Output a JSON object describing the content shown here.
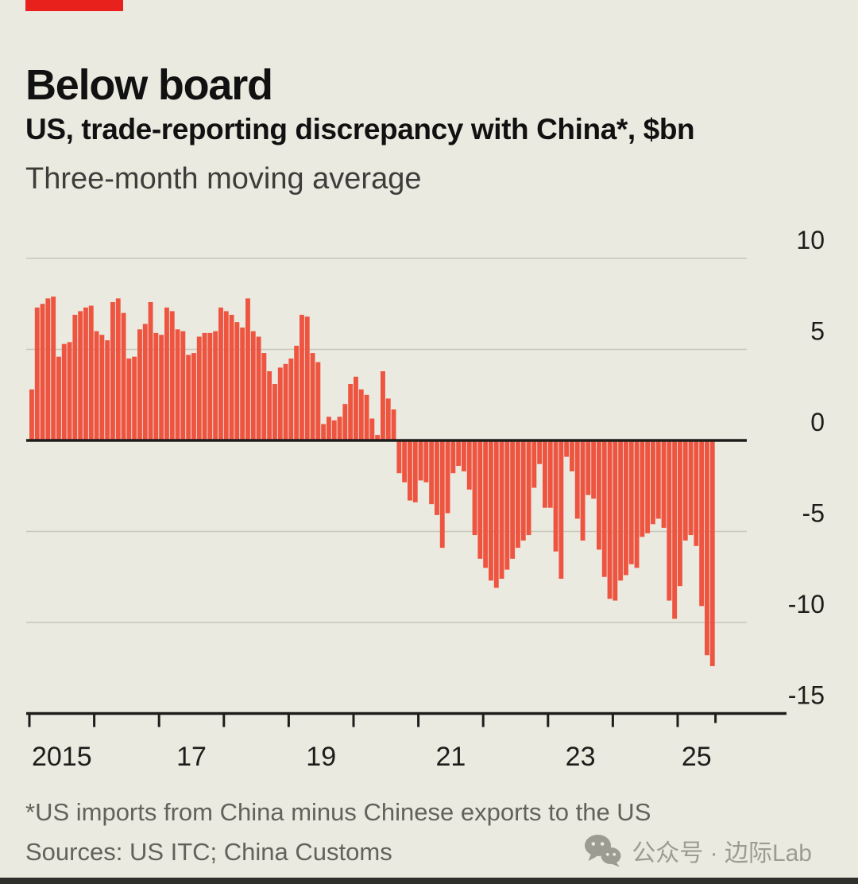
{
  "header": {
    "title": "Below board",
    "subtitle": "US, trade-reporting discrepancy with China*, $bn",
    "description": "Three-month moving average"
  },
  "chart_data": {
    "type": "bar",
    "title": "Below board",
    "subtitle": "US, trade-reporting discrepancy with China*, $bn",
    "note": "Three-month moving average",
    "unit": "$bn",
    "ylim": [
      -15,
      10
    ],
    "yticks": [
      10,
      5,
      0,
      -5,
      -10,
      -15
    ],
    "grid": true,
    "legend": false,
    "x_start": "2015-01",
    "x_end": "2025-07",
    "x_tick_years": [
      2015,
      2016,
      2017,
      2018,
      2019,
      2020,
      2021,
      2022,
      2023,
      2024,
      2025
    ],
    "x_tick_labels": [
      {
        "year": 2015,
        "label": "2015"
      },
      {
        "year": 2017,
        "label": "17"
      },
      {
        "year": 2019,
        "label": "19"
      },
      {
        "year": 2021,
        "label": "21"
      },
      {
        "year": 2023,
        "label": "23"
      },
      {
        "year": 2025,
        "label": "25"
      }
    ],
    "series": [
      {
        "name": "US trade-reporting discrepancy with China, three-month moving average",
        "monthly_values": [
          2.8,
          7.3,
          7.5,
          7.8,
          7.9,
          4.6,
          5.3,
          5.4,
          6.9,
          7.1,
          7.3,
          7.4,
          6.0,
          5.8,
          5.5,
          7.6,
          7.8,
          7.0,
          4.5,
          4.6,
          6.1,
          6.4,
          7.6,
          5.9,
          5.8,
          7.3,
          7.1,
          6.1,
          6.0,
          4.7,
          4.8,
          5.7,
          5.9,
          5.9,
          6.0,
          7.3,
          7.1,
          6.9,
          6.5,
          6.2,
          7.8,
          6.0,
          5.7,
          4.8,
          3.8,
          3.1,
          4.0,
          4.2,
          4.5,
          5.2,
          6.9,
          6.8,
          4.8,
          4.3,
          0.9,
          1.3,
          1.1,
          1.3,
          2.0,
          3.1,
          3.5,
          2.8,
          2.5,
          1.2,
          0.3,
          3.8,
          2.3,
          1.7,
          -1.8,
          -2.3,
          -3.3,
          -3.4,
          -2.2,
          -2.3,
          -3.5,
          -4.1,
          -5.9,
          -4.0,
          -1.8,
          -1.4,
          -1.7,
          -2.7,
          -5.2,
          -6.5,
          -7.0,
          -7.7,
          -8.1,
          -7.6,
          -7.1,
          -6.5,
          -5.9,
          -5.5,
          -5.2,
          -2.6,
          -1.3,
          -3.7,
          -3.7,
          -6.1,
          -7.6,
          -0.9,
          -1.7,
          -4.3,
          -5.5,
          -3.0,
          -3.2,
          -6.0,
          -7.5,
          -8.7,
          -8.8,
          -7.7,
          -7.4,
          -6.8,
          -7.0,
          -5.3,
          -5.1,
          -4.6,
          -4.3,
          -4.8,
          -8.8,
          -9.8,
          -8.0,
          -5.5,
          -5.2,
          -5.8,
          -9.1,
          -11.8,
          -12.4
        ]
      }
    ],
    "bar_color": "#ee5541"
  },
  "footer": {
    "footnote": "*US imports from China minus Chinese exports to the US",
    "sources": "Sources: US ITC; China Customs"
  },
  "watermark": {
    "icon": "wechat-icon",
    "label": "公众号 · 边际Lab"
  },
  "colors": {
    "background": "#ebeae0",
    "accent_red": "#e8211d",
    "bar_red": "#ee5541",
    "grid": "#c6c6ba",
    "axis": "#1d1d1b",
    "text_primary": "#111111",
    "text_secondary": "#3d3d3a",
    "text_muted": "#62625c",
    "watermark_gray": "#9c9c92",
    "bottom_strip": "#2f2f2b"
  }
}
